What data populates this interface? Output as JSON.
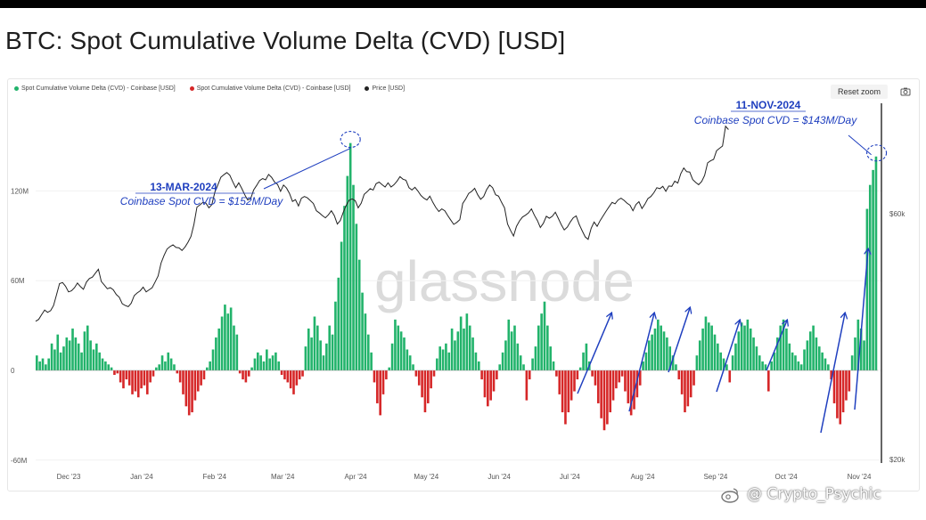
{
  "title": "BTC: Spot Cumulative Volume Delta (CVD) [USD]",
  "legend": [
    {
      "label": "Spot Cumulative Volume Delta (CVD) - Coinbase [USD]",
      "color": "#22b36b"
    },
    {
      "label": "Spot Cumulative Volume Delta (CVD) - Coinbase [USD]",
      "color": "#d62728"
    },
    {
      "label": "Price [USD]",
      "color": "#222222"
    }
  ],
  "controls": {
    "reset_zoom": "Reset zoom",
    "camera_icon": "camera-icon"
  },
  "watermark": {
    "brand": "glassnode",
    "author": "@ Crypto_Psychic"
  },
  "annotations": [
    {
      "date": "13-MAR-2024",
      "text": "Coinbase Spot CVD = $152M/Day"
    },
    {
      "date": "11-NOV-2024",
      "text": "Coinbase Spot CVD = $143M/Day"
    }
  ],
  "colors": {
    "positive": "#22b36b",
    "negative": "#d62728",
    "price": "#222222",
    "annotation": "#1f3fbf"
  },
  "chart_data": {
    "type": "bar",
    "x_labels": [
      "Dec '23",
      "Jan '24",
      "Feb '24",
      "Mar '24",
      "Apr '24",
      "May '24",
      "Jun '24",
      "Jul '24",
      "Aug '24",
      "Sep '24",
      "Oct '24",
      "Nov '24"
    ],
    "left_axis": {
      "ticks": [
        "120M",
        "60M",
        "0",
        "-60M"
      ],
      "range": [
        -80,
        160
      ]
    },
    "right_axis": {
      "ticks": [
        "$60k",
        "$20k"
      ],
      "scale": "log"
    },
    "series": [
      {
        "name": "Spot Cumulative Volume Delta (CVD) - Coinbase [USD]",
        "unit": "M USD/day",
        "x_start": "2023-11-20",
        "x_end": "2024-11-12",
        "values": [
          10,
          6,
          8,
          4,
          8,
          18,
          14,
          24,
          12,
          16,
          22,
          20,
          28,
          22,
          18,
          12,
          26,
          30,
          20,
          14,
          18,
          12,
          8,
          6,
          4,
          2,
          -3,
          -2,
          -8,
          -12,
          -6,
          -10,
          -16,
          -14,
          -18,
          -12,
          -10,
          -16,
          -8,
          -4,
          2,
          4,
          10,
          6,
          12,
          8,
          4,
          -2,
          -8,
          -16,
          -24,
          -30,
          -28,
          -20,
          -14,
          -10,
          -6,
          2,
          6,
          14,
          22,
          28,
          36,
          44,
          38,
          42,
          30,
          24,
          -2,
          -6,
          -8,
          -4,
          2,
          8,
          12,
          10,
          6,
          14,
          8,
          10,
          12,
          6,
          -3,
          -6,
          -8,
          -12,
          -16,
          -10,
          -6,
          -4,
          16,
          28,
          22,
          36,
          30,
          20,
          10,
          18,
          30,
          24,
          46,
          62,
          86,
          110,
          130,
          152,
          124,
          98,
          74,
          52,
          38,
          24,
          12,
          -8,
          -22,
          -30,
          -16,
          -6,
          2,
          18,
          34,
          30,
          26,
          22,
          14,
          10,
          4,
          -4,
          -10,
          -18,
          -28,
          -22,
          -12,
          -4,
          8,
          16,
          14,
          18,
          12,
          28,
          20,
          26,
          36,
          28,
          38,
          30,
          22,
          12,
          6,
          -6,
          -18,
          -24,
          -20,
          -14,
          -6,
          4,
          12,
          20,
          34,
          26,
          30,
          18,
          10,
          4,
          -20,
          -6,
          8,
          16,
          30,
          38,
          46,
          30,
          16,
          6,
          -4,
          -16,
          -28,
          -36,
          -28,
          -20,
          -14,
          -6,
          2,
          12,
          18,
          6,
          -4,
          -10,
          -22,
          -32,
          -40,
          -36,
          -28,
          -20,
          -12,
          -8,
          -4,
          -14,
          -22,
          -30,
          -26,
          -18,
          -10,
          6,
          12,
          20,
          24,
          28,
          34,
          30,
          26,
          22,
          16,
          10,
          4,
          -6,
          -16,
          -28,
          -24,
          -18,
          -10,
          10,
          20,
          28,
          36,
          32,
          30,
          24,
          18,
          12,
          8,
          4,
          -8,
          10,
          18,
          26,
          32,
          30,
          34,
          28,
          22,
          16,
          10,
          6,
          4,
          -14,
          6,
          12,
          22,
          30,
          34,
          28,
          18,
          12,
          10,
          6,
          4,
          14,
          20,
          26,
          30,
          22,
          16,
          12,
          8,
          4,
          -6,
          -22,
          -32,
          -36,
          -28,
          -20,
          -14,
          10,
          22,
          34,
          28,
          20,
          108,
          124,
          134,
          143
        ]
      },
      {
        "name": "Price [USD]",
        "unit": "USD",
        "values": [
          37100,
          37400,
          38200,
          39000,
          38600,
          38900,
          39800,
          41800,
          43900,
          44100,
          43400,
          42300,
          42500,
          43100,
          44000,
          43300,
          42800,
          44200,
          44900,
          45200,
          46000,
          46800,
          44300,
          43600,
          42900,
          43100,
          42700,
          41800,
          41300,
          40100,
          39800,
          39600,
          40200,
          41600,
          42100,
          42500,
          43200,
          42300,
          42700,
          43100,
          44200,
          45400,
          48100,
          49800,
          51200,
          51800,
          52200,
          51600,
          51500,
          50900,
          51700,
          52800,
          54200,
          57200,
          61800,
          62400,
          63100,
          62900,
          61600,
          62500,
          66100,
          68200,
          70600,
          71400,
          72100,
          71300,
          69200,
          67400,
          68900,
          67200,
          65300,
          63800,
          64200,
          66700,
          68100,
          69600,
          70200,
          69800,
          71500,
          70600,
          69100,
          68400,
          66300,
          68200,
          67300,
          65700,
          63400,
          63900,
          62100,
          64300,
          64800,
          64400,
          63600,
          62800,
          60800,
          60200,
          59500,
          58900,
          59700,
          60800,
          59500,
          57300,
          58200,
          60400,
          62300,
          63800,
          64100,
          63600,
          61600,
          62900,
          65400,
          66200,
          67100,
          66700,
          68600,
          69100,
          68300,
          67600,
          68900,
          67600,
          68300,
          69400,
          70800,
          70000,
          69700,
          67400,
          66700,
          67500,
          66400,
          65100,
          64300,
          63800,
          64900,
          63100,
          61700,
          60600,
          61300,
          60800,
          59500,
          58300,
          57200,
          57700,
          58400,
          62800,
          64100,
          65700,
          66300,
          67200,
          65300,
          64000,
          64800,
          66800,
          68200,
          67400,
          65300,
          64900,
          63100,
          61600,
          57300,
          55700,
          54300,
          56700,
          58100,
          59100,
          59600,
          60200,
          61300,
          59600,
          58200,
          56400,
          57500,
          59300,
          58800,
          59300,
          60400,
          58800,
          57100,
          55800,
          56500,
          57800,
          58900,
          59400,
          57200,
          55600,
          54100,
          53500,
          56200,
          57800,
          56700,
          58200,
          59400,
          60700,
          61900,
          63100,
          62700,
          63800,
          64300,
          63700,
          62900,
          62300,
          60800,
          62500,
          63300,
          61400,
          62600,
          64200,
          64800,
          65900,
          67400,
          67100,
          67800,
          66300,
          67900,
          67800,
          69400,
          68800,
          71700,
          73600,
          72400,
          72300,
          69900,
          69000,
          68300,
          69300,
          71200,
          75300,
          76000,
          76500,
          79500,
          80400,
          81200,
          88700,
          87400
        ]
      }
    ]
  }
}
